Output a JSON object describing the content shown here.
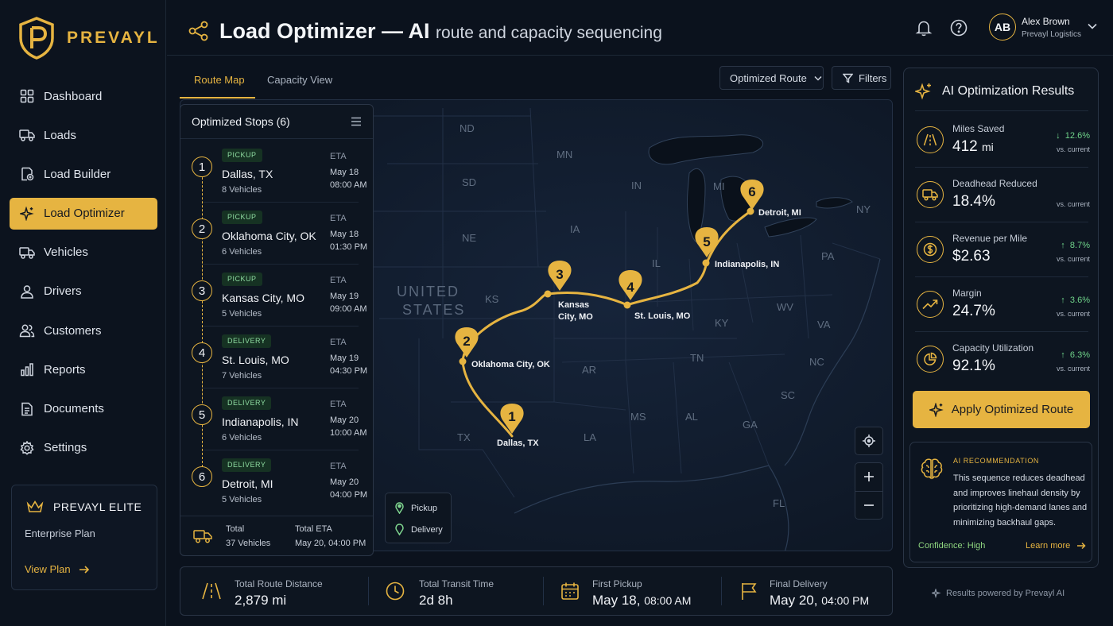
{
  "brand": {
    "name": "PREVAYL",
    "accent": "#e6b441"
  },
  "sidebar": {
    "items": [
      {
        "label": "Dashboard",
        "icon": "grid-icon"
      },
      {
        "label": "Loads",
        "icon": "truck-icon"
      },
      {
        "label": "Load Builder",
        "icon": "load-builder-icon"
      },
      {
        "label": "Load Optimizer",
        "icon": "sparkle-icon",
        "active": true
      },
      {
        "label": "Vehicles",
        "icon": "truck-icon"
      },
      {
        "label": "Drivers",
        "icon": "person-icon"
      },
      {
        "label": "Customers",
        "icon": "people-icon"
      },
      {
        "label": "Reports",
        "icon": "bar-chart-icon"
      },
      {
        "label": "Documents",
        "icon": "document-icon"
      },
      {
        "label": "Settings",
        "icon": "gear-icon"
      }
    ],
    "elite": {
      "title": "PREVAYL ELITE",
      "plan": "Enterprise Plan",
      "link": "View Plan"
    }
  },
  "header": {
    "title": "Load Optimizer — AI",
    "subtitle": "route and capacity sequencing",
    "user": {
      "initials": "AB",
      "name": "Alex Brown",
      "org": "Prevayl Logistics"
    }
  },
  "tabs": [
    {
      "label": "Route Map",
      "active": true
    },
    {
      "label": "Capacity View"
    }
  ],
  "toolbar": {
    "select_value": "Optimized Route",
    "filters_label": "Filters"
  },
  "stops_panel": {
    "title": "Optimized Stops (6)",
    "eta_label": "ETA",
    "stops": [
      {
        "num": "1",
        "type": "PICKUP",
        "city": "Dallas, TX",
        "vehicles": "8 Vehicles",
        "eta_date": "May 18",
        "eta_time": "08:00 AM"
      },
      {
        "num": "2",
        "type": "PICKUP",
        "city": "Oklahoma City, OK",
        "vehicles": "6 Vehicles",
        "eta_date": "May 18",
        "eta_time": "01:30 PM"
      },
      {
        "num": "3",
        "type": "PICKUP",
        "city": "Kansas City, MO",
        "vehicles": "5 Vehicles",
        "eta_date": "May 19",
        "eta_time": "09:00 AM"
      },
      {
        "num": "4",
        "type": "DELIVERY",
        "city": "St. Louis, MO",
        "vehicles": "7 Vehicles",
        "eta_date": "May 19",
        "eta_time": "04:30 PM"
      },
      {
        "num": "5",
        "type": "DELIVERY",
        "city": "Indianapolis, IN",
        "vehicles": "6 Vehicles",
        "eta_date": "May 20",
        "eta_time": "10:00 AM"
      },
      {
        "num": "6",
        "type": "DELIVERY",
        "city": "Detroit, MI",
        "vehicles": "5 Vehicles",
        "eta_date": "May 20",
        "eta_time": "04:00 PM"
      }
    ],
    "footer": {
      "total_label": "Total",
      "total_value": "37 Vehicles",
      "eta_label": "Total ETA",
      "eta_value": "May 20, 04:00 PM"
    }
  },
  "map": {
    "country_label_1": "UNITED",
    "country_label_2": "STATES",
    "states": [
      "ND",
      "MN",
      "SD",
      "IN",
      "MI",
      "NY",
      "NE",
      "IA",
      "PA",
      "IL",
      "KS",
      "WV",
      "VA",
      "KY",
      "TN",
      "NC",
      "AR",
      "SC",
      "MS",
      "AL",
      "GA",
      "LA",
      "TX",
      "FL"
    ],
    "route_labels": {
      "dallas": "Dallas, TX",
      "okc": "Oklahoma City, OK",
      "kc_1": "Kansas",
      "kc_2": "City, MO",
      "stl": "St. Louis, MO",
      "indy": "Indianapolis, IN",
      "detroit": "Detroit, MI"
    },
    "markers": [
      "1",
      "2",
      "3",
      "4",
      "5",
      "6"
    ],
    "legend": {
      "pickup": "Pickup",
      "delivery": "Delivery"
    },
    "colors": {
      "route": "#e6b441",
      "pickup": "#7fd68f",
      "delivery": "#7fd68f"
    }
  },
  "stats": [
    {
      "label": "Total Route Distance",
      "value": "2,879 mi",
      "icon": "road-icon"
    },
    {
      "label": "Total Transit Time",
      "value": "2d 8h",
      "icon": "clock-icon"
    },
    {
      "label": "First Pickup",
      "value": "May 18,",
      "value_small": "08:00 AM",
      "icon": "calendar-icon"
    },
    {
      "label": "Final Delivery",
      "value": "May 20,",
      "value_small": "04:00 PM",
      "icon": "flag-icon"
    }
  ],
  "ai_panel": {
    "title": "AI Optimization Results",
    "metrics": [
      {
        "label": "Miles Saved",
        "value": "412",
        "unit": "mi",
        "delta": "12.6%",
        "direction": "down",
        "vs": "vs. current",
        "icon": "road-icon"
      },
      {
        "label": "Deadhead Reduced",
        "value": "18.4%",
        "unit": "",
        "delta": "",
        "vs": "vs. current",
        "icon": "truck-icon"
      },
      {
        "label": "Revenue per Mile",
        "value": "$2.63",
        "unit": "",
        "delta": "8.7%",
        "direction": "up",
        "vs": "vs. current",
        "icon": "dollar-icon"
      },
      {
        "label": "Margin",
        "value": "24.7%",
        "unit": "",
        "delta": "3.6%",
        "direction": "up",
        "vs": "vs. current",
        "icon": "trend-up-icon"
      },
      {
        "label": "Capacity Utilization",
        "value": "92.1%",
        "unit": "",
        "delta": "6.3%",
        "direction": "up",
        "vs": "vs. current",
        "icon": "pie-icon"
      }
    ],
    "apply_label": "Apply Optimized Route",
    "recommendation": {
      "label": "AI RECOMMENDATION",
      "text": "This sequence reduces deadhead and improves linehaul density by prioritizing high-demand lanes and minimizing backhaul gaps.",
      "confidence": "Confidence: High",
      "link": "Learn more"
    },
    "powered": "Results powered by Prevayl AI"
  }
}
